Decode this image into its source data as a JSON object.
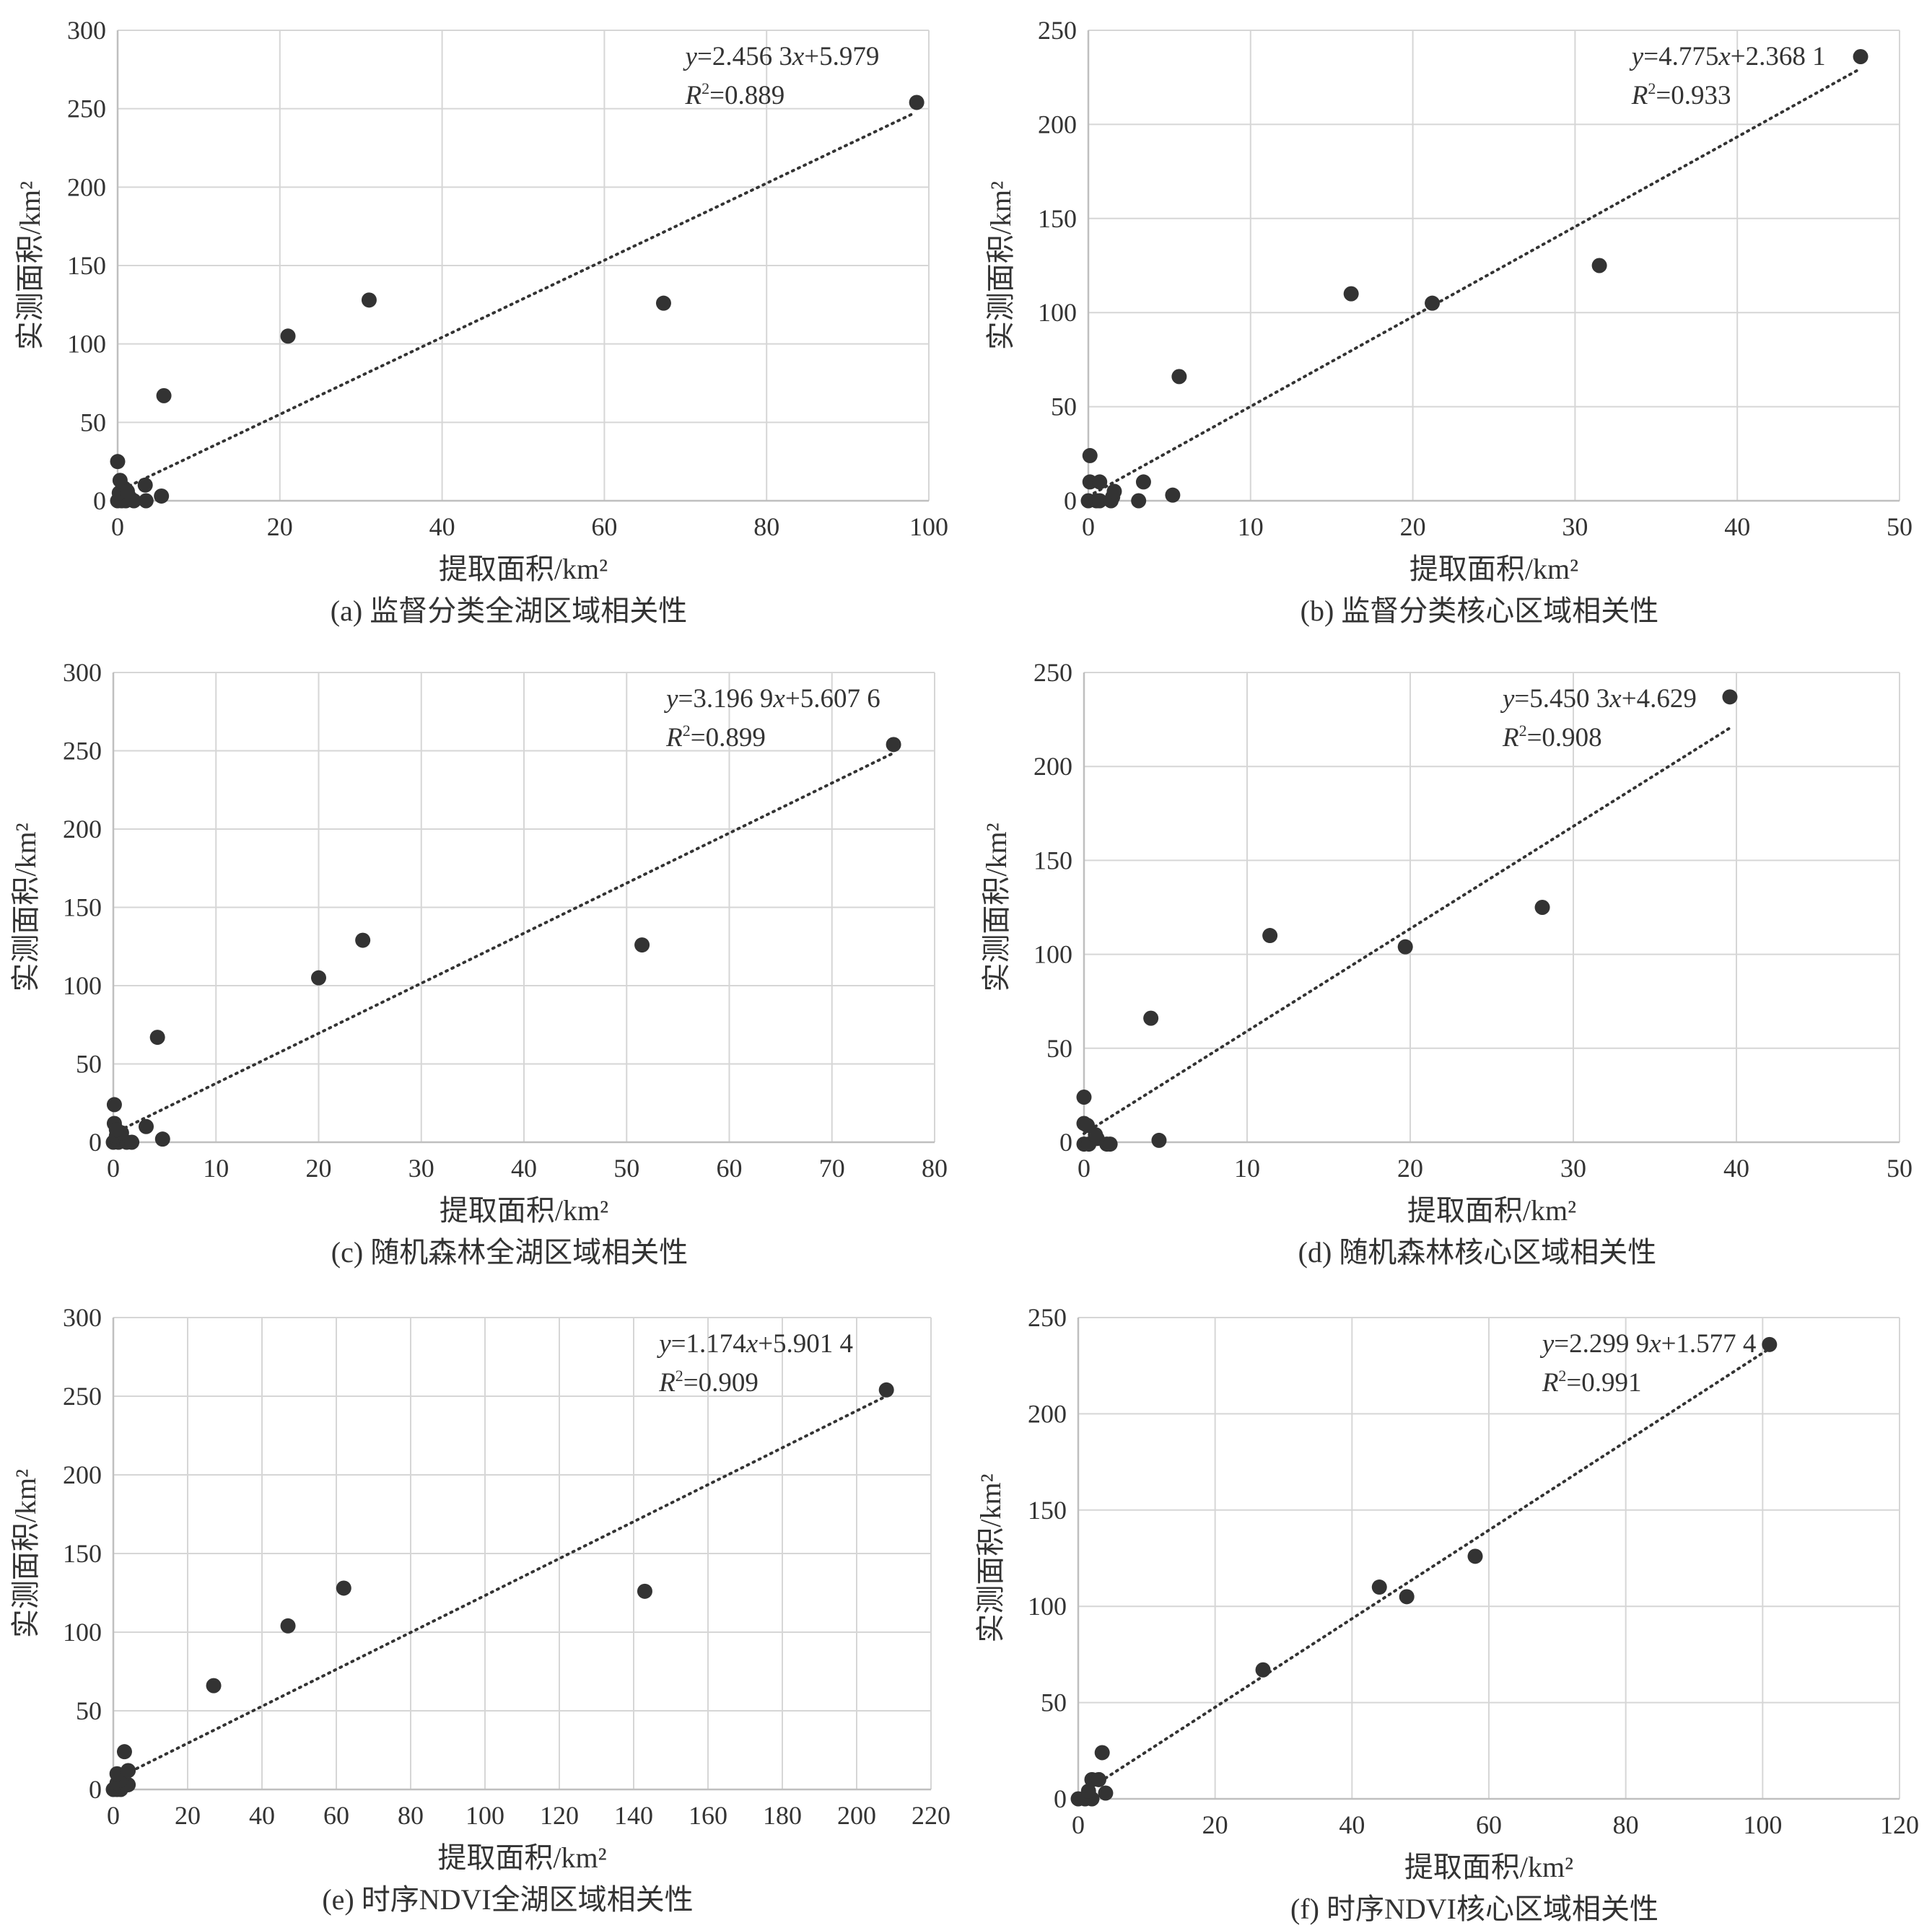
{
  "colors": {
    "point": "#333333",
    "grid": "#d6d6d6",
    "axis": "#bfbfbf",
    "trend": "#333333",
    "text": "#333333"
  },
  "chart_data": [
    {
      "type": "scatter",
      "caption": "(a) 监督分类全湖区域相关性",
      "xlabel": "提取面积/km²",
      "ylabel": "实测面积/km²",
      "xlim": [
        0,
        100
      ],
      "xticks": [
        0,
        20,
        40,
        60,
        80,
        100
      ],
      "ylim": [
        0,
        300
      ],
      "yticks": [
        0,
        50,
        100,
        150,
        200,
        250,
        300
      ],
      "equation": {
        "y_part": "y",
        "mid": "=2.456 3",
        "x_part": "x",
        "rest": "+5.979"
      },
      "r2": {
        "r": "R",
        "sup": "2",
        "value": "=0.889"
      },
      "trend": {
        "slope": 2.4563,
        "intercept": 5.979,
        "x_range": [
          0,
          98
        ]
      },
      "points": [
        [
          0,
          0
        ],
        [
          0.5,
          0
        ],
        [
          1,
          0
        ],
        [
          2,
          0
        ],
        [
          1.5,
          2
        ],
        [
          3.5,
          0
        ],
        [
          5.4,
          3
        ],
        [
          0.2,
          5
        ],
        [
          0.8,
          8
        ],
        [
          0.3,
          13
        ],
        [
          1.2,
          6
        ],
        [
          3.4,
          10
        ],
        [
          0,
          25
        ],
        [
          5.7,
          67
        ],
        [
          21,
          105
        ],
        [
          31,
          128
        ],
        [
          67.3,
          126
        ],
        [
          98.5,
          254
        ]
      ]
    },
    {
      "type": "scatter",
      "caption": "(b) 监督分类核心区域相关性",
      "xlabel": "提取面积/km²",
      "ylabel": "实测面积/km²",
      "xlim": [
        0,
        50
      ],
      "xticks": [
        0,
        10,
        20,
        30,
        40,
        50
      ],
      "ylim": [
        0,
        250
      ],
      "yticks": [
        0,
        50,
        100,
        150,
        200,
        250
      ],
      "equation": {
        "y_part": "y",
        "mid": "=4.775",
        "x_part": "x",
        "rest": "+2.368 1"
      },
      "r2": {
        "r": "R",
        "sup": "2",
        "value": "=0.933"
      },
      "trend": {
        "slope": 4.775,
        "intercept": 2.3681,
        "x_range": [
          0,
          47.5
        ]
      },
      "points": [
        [
          0,
          0
        ],
        [
          0.5,
          0
        ],
        [
          0.7,
          0
        ],
        [
          1.4,
          0
        ],
        [
          1.5,
          2
        ],
        [
          1.6,
          5
        ],
        [
          0.1,
          10
        ],
        [
          0.7,
          10
        ],
        [
          3.1,
          0
        ],
        [
          3.4,
          10
        ],
        [
          5.2,
          3
        ],
        [
          0.1,
          24
        ],
        [
          5.6,
          66
        ],
        [
          16.2,
          110
        ],
        [
          21.2,
          105
        ],
        [
          31.5,
          125
        ],
        [
          47.6,
          236
        ]
      ]
    },
    {
      "type": "scatter",
      "caption": "(c) 随机森林全湖区域相关性",
      "xlabel": "提取面积/km²",
      "ylabel": "实测面积/km²",
      "xlim": [
        0,
        80
      ],
      "xticks": [
        0,
        10,
        20,
        30,
        40,
        50,
        60,
        70,
        80
      ],
      "ylim": [
        0,
        300
      ],
      "yticks": [
        0,
        50,
        100,
        150,
        200,
        250,
        300
      ],
      "equation": {
        "y_part": "y",
        "mid": "=3.196 9",
        "x_part": "x",
        "rest": "+5.607 6"
      },
      "r2": {
        "r": "R",
        "sup": "2",
        "value": "=0.899"
      },
      "trend": {
        "slope": 3.1969,
        "intercept": 5.6076,
        "x_range": [
          0,
          76
        ]
      },
      "points": [
        [
          0,
          0
        ],
        [
          0.5,
          0
        ],
        [
          1.3,
          0
        ],
        [
          1.8,
          0
        ],
        [
          0.3,
          4
        ],
        [
          0.8,
          6
        ],
        [
          0.1,
          12
        ],
        [
          0.3,
          8
        ],
        [
          3.2,
          10
        ],
        [
          4.8,
          2
        ],
        [
          0.1,
          24
        ],
        [
          4.3,
          67
        ],
        [
          20,
          105
        ],
        [
          24.3,
          129
        ],
        [
          51.5,
          126
        ],
        [
          76,
          254
        ]
      ]
    },
    {
      "type": "scatter",
      "caption": "(d) 随机森林核心区域相关性",
      "xlabel": "提取面积/km²",
      "ylabel": "实测面积/km²",
      "xlim": [
        0,
        50
      ],
      "xticks": [
        0,
        10,
        20,
        30,
        40,
        50
      ],
      "ylim": [
        0,
        250
      ],
      "yticks": [
        0,
        50,
        100,
        150,
        200,
        250
      ],
      "equation": {
        "y_part": "y",
        "mid": "=5.450 3",
        "x_part": "x",
        "rest": "+4.629"
      },
      "r2": {
        "r": "R",
        "sup": "2",
        "value": "=0.908"
      },
      "trend": {
        "slope": 5.4503,
        "intercept": 4.629,
        "x_range": [
          0,
          39.6
        ]
      },
      "points": [
        [
          0,
          -1
        ],
        [
          0.3,
          -1
        ],
        [
          1.4,
          -1
        ],
        [
          1.6,
          -1
        ],
        [
          0.8,
          2
        ],
        [
          0.7,
          4
        ],
        [
          0,
          10
        ],
        [
          0.2,
          9
        ],
        [
          4.6,
          1
        ],
        [
          0,
          24
        ],
        [
          4.1,
          66
        ],
        [
          11.4,
          110
        ],
        [
          19.7,
          104
        ],
        [
          28.1,
          125
        ],
        [
          39.6,
          237
        ]
      ]
    },
    {
      "type": "scatter",
      "caption": "(e) 时序NDVI全湖区域相关性",
      "xlabel": "提取面积/km²",
      "ylabel": "实测面积/km²",
      "xlim": [
        0,
        220
      ],
      "xticks": [
        0,
        20,
        40,
        60,
        80,
        100,
        120,
        140,
        160,
        180,
        200,
        220
      ],
      "ylim": [
        0,
        300
      ],
      "yticks": [
        0,
        50,
        100,
        150,
        200,
        250,
        300
      ],
      "equation": {
        "y_part": "y",
        "mid": "=1.174",
        "x_part": "x",
        "rest": "+5.901 4"
      },
      "r2": {
        "r": "R",
        "sup": "2",
        "value": "=0.909"
      },
      "trend": {
        "slope": 1.174,
        "intercept": 5.9014,
        "x_range": [
          0,
          208
        ]
      },
      "points": [
        [
          0,
          0
        ],
        [
          1,
          0
        ],
        [
          2,
          0
        ],
        [
          2,
          2
        ],
        [
          3,
          3
        ],
        [
          4,
          3
        ],
        [
          1,
          4
        ],
        [
          2,
          6
        ],
        [
          1,
          10
        ],
        [
          4,
          12
        ],
        [
          3,
          24
        ],
        [
          27,
          66
        ],
        [
          47,
          104
        ],
        [
          62,
          128
        ],
        [
          143,
          126
        ],
        [
          208,
          254
        ]
      ]
    },
    {
      "type": "scatter",
      "caption": "(f) 时序NDVI核心区域相关性",
      "xlabel": "提取面积/km²",
      "ylabel": "实测面积/km²",
      "xlim": [
        0,
        120
      ],
      "xticks": [
        0,
        20,
        40,
        60,
        80,
        100,
        120
      ],
      "ylim": [
        0,
        250
      ],
      "yticks": [
        0,
        50,
        100,
        150,
        200,
        250
      ],
      "equation": {
        "y_part": "y",
        "mid": "=2.299 9",
        "x_part": "x",
        "rest": "+1.577 4"
      },
      "r2": {
        "r": "R",
        "sup": "2",
        "value": "=0.991"
      },
      "trend": {
        "slope": 2.2999,
        "intercept": 1.5774,
        "x_range": [
          0,
          101
        ]
      },
      "points": [
        [
          0,
          0
        ],
        [
          1,
          0
        ],
        [
          2,
          0
        ],
        [
          1.5,
          4
        ],
        [
          2,
          10
        ],
        [
          3,
          10
        ],
        [
          4,
          3
        ],
        [
          3.5,
          24
        ],
        [
          27,
          67
        ],
        [
          44,
          110
        ],
        [
          48,
          105
        ],
        [
          58,
          126
        ],
        [
          101,
          236
        ]
      ]
    }
  ]
}
